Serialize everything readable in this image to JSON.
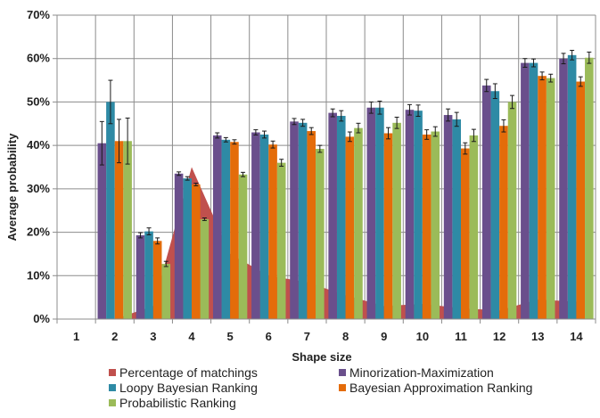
{
  "chart_data": {
    "type": "bar",
    "xlabel": "Shape size",
    "ylabel": "Average probability",
    "ylim": [
      0,
      70
    ],
    "y_ticks": [
      0,
      10,
      20,
      30,
      40,
      50,
      60,
      70
    ],
    "y_tick_labels": [
      "0%",
      "10%",
      "20%",
      "30%",
      "40%",
      "50%",
      "60%",
      "70%"
    ],
    "categories": [
      "1",
      "2",
      "3",
      "4",
      "5",
      "6",
      "7",
      "8",
      "9",
      "10",
      "11",
      "12",
      "13",
      "14"
    ],
    "grid": true,
    "legend_position": "bottom",
    "area_series": {
      "name": "Percentage of matchings",
      "color": "#c0504d",
      "values": [
        0,
        0,
        3,
        35,
        15,
        10,
        8.5,
        5.5,
        3,
        3.5,
        2.5,
        2,
        4.5,
        4
      ]
    },
    "series": [
      {
        "name": "Minorization-Maximization",
        "color": "#6a4f8c",
        "values": [
          null,
          40.5,
          19.3,
          33.5,
          42.3,
          43.0,
          45.5,
          47.5,
          48.7,
          48.2,
          47.0,
          53.8,
          59.0,
          60.0
        ],
        "errors": [
          null,
          5.0,
          0.6,
          0.4,
          0.6,
          0.6,
          0.7,
          0.9,
          1.3,
          1.2,
          1.4,
          1.4,
          1.0,
          1.2
        ]
      },
      {
        "name": "Loopy Bayesian Ranking",
        "color": "#2e8aa5",
        "values": [
          null,
          50.0,
          20.2,
          32.4,
          41.3,
          42.5,
          45.2,
          46.8,
          48.7,
          48.0,
          46.0,
          52.5,
          59.0,
          60.8
        ],
        "errors": [
          null,
          5.0,
          0.8,
          0.4,
          0.5,
          0.8,
          0.8,
          1.2,
          1.5,
          1.3,
          1.6,
          1.7,
          0.9,
          1.1
        ]
      },
      {
        "name": "Bayesian Approximation Ranking",
        "color": "#e46c0a",
        "values": [
          null,
          41.0,
          18.0,
          31.0,
          40.8,
          40.2,
          43.3,
          42.0,
          42.8,
          42.5,
          39.3,
          44.5,
          56.0,
          54.7
        ],
        "errors": [
          null,
          5.0,
          0.7,
          0.3,
          0.5,
          0.8,
          0.8,
          1.1,
          1.3,
          1.1,
          1.3,
          1.4,
          0.9,
          1.1
        ]
      },
      {
        "name": "Probabilistic Ranking",
        "color": "#9bbb59",
        "values": [
          null,
          41.0,
          12.7,
          23.0,
          33.3,
          36.0,
          39.2,
          44.0,
          45.2,
          43.2,
          42.3,
          50.0,
          55.5,
          60.2
        ],
        "errors": [
          null,
          5.3,
          0.6,
          0.3,
          0.5,
          0.8,
          0.8,
          1.1,
          1.3,
          1.1,
          1.4,
          1.5,
          0.9,
          1.3
        ]
      }
    ]
  }
}
